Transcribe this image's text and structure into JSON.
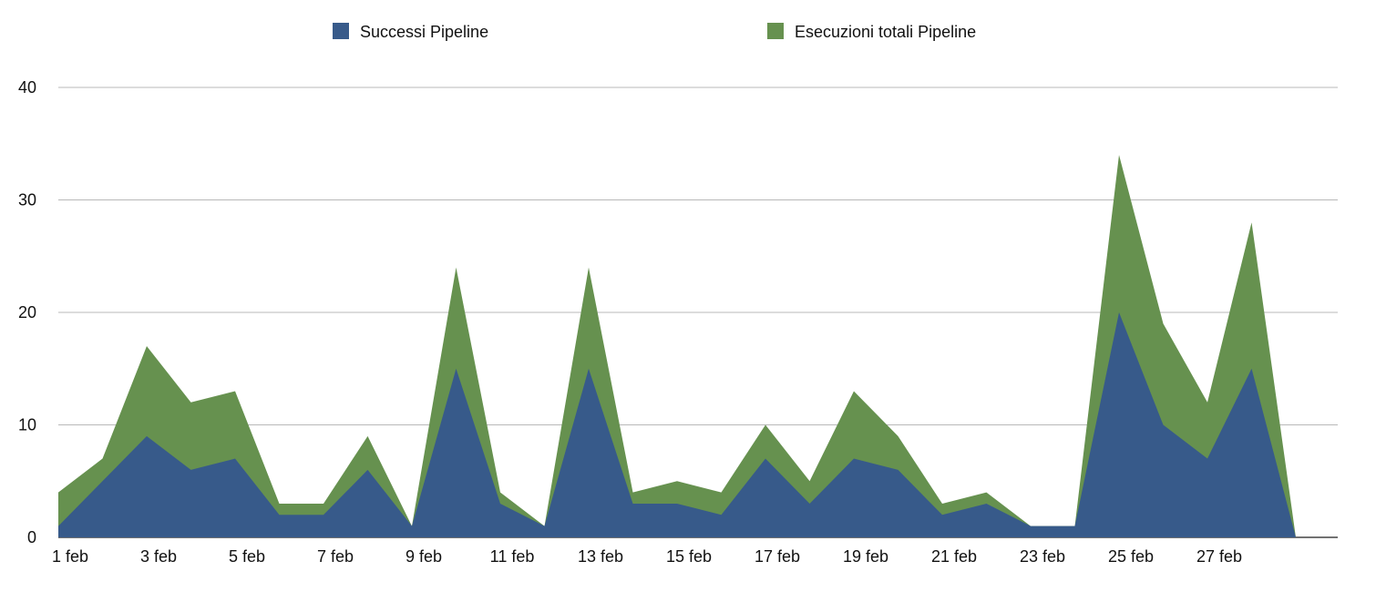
{
  "chart_data": {
    "type": "area",
    "stacked": false,
    "x": [
      "1 feb",
      "2 feb",
      "3 feb",
      "4 feb",
      "5 feb",
      "6 feb",
      "7 feb",
      "8 feb",
      "9 feb",
      "10 feb",
      "11 feb",
      "12 feb",
      "13 feb",
      "14 feb",
      "15 feb",
      "16 feb",
      "17 feb",
      "18 feb",
      "19 feb",
      "20 feb",
      "21 feb",
      "22 feb",
      "23 feb",
      "24 feb",
      "25 feb",
      "26 feb",
      "27 feb",
      "28 feb",
      "29 feb"
    ],
    "x_tick_labels": [
      "1 feb",
      "3 feb",
      "5 feb",
      "7 feb",
      "9 feb",
      "11 feb",
      "13 feb",
      "15 feb",
      "17 feb",
      "19 feb",
      "21 feb",
      "23 feb",
      "25 feb",
      "27 feb"
    ],
    "series": [
      {
        "name": "Successi Pipeline",
        "color": "#375a8a",
        "values": [
          1,
          5,
          9,
          6,
          7,
          2,
          2,
          6,
          1,
          15,
          3,
          1,
          15,
          3,
          3,
          2,
          7,
          3,
          7,
          6,
          2,
          3,
          1,
          1,
          20,
          10,
          7,
          15,
          0
        ]
      },
      {
        "name": "Esecuzioni totali Pipeline",
        "color": "#66914f",
        "values": [
          4,
          7,
          17,
          12,
          13,
          3,
          3,
          9,
          1,
          24,
          4,
          1,
          24,
          4,
          5,
          4,
          10,
          5,
          13,
          9,
          3,
          4,
          1,
          1,
          34,
          19,
          12,
          28,
          0
        ]
      }
    ],
    "y_ticks": [
      "0",
      "10",
      "20",
      "30",
      "40"
    ],
    "ylim": [
      0,
      40
    ],
    "grid": true,
    "legend_position": "top",
    "title": "",
    "xlabel": "",
    "ylabel": ""
  }
}
